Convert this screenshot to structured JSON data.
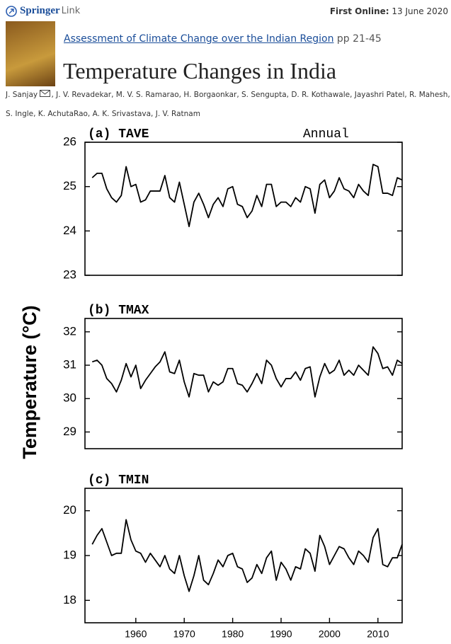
{
  "header": {
    "brand": "Springer",
    "brand_suffix": "Link",
    "first_online_label": "First Online:",
    "first_online_date": "13 June 2020",
    "book_link": "Assessment of Climate Change over the Indian Region",
    "pages": "pp 21-45",
    "title": "Temperature Changes in India",
    "authors": [
      "J. Sanjay",
      ", J. V. Revadekar, M. V. S. Ramarao, H. Borgaonkar, S. Sengupta, D. R. Kothawale, Jayashri Patel, R. Mahesh,",
      "S. Ingle, K. AchutaRao, A. K. Srivastava, J. V. Ratnam"
    ]
  },
  "figure": {
    "ylabel": "Temperature (°C)"
  },
  "chart_data": [
    {
      "type": "line",
      "title": "(a)  TAVE",
      "annotation": "Annual",
      "color": "#000000",
      "x": [
        1951,
        1952,
        1953,
        1954,
        1955,
        1956,
        1957,
        1958,
        1959,
        1960,
        1961,
        1962,
        1963,
        1964,
        1965,
        1966,
        1967,
        1968,
        1969,
        1970,
        1971,
        1972,
        1973,
        1974,
        1975,
        1976,
        1977,
        1978,
        1979,
        1980,
        1981,
        1982,
        1983,
        1984,
        1985,
        1986,
        1987,
        1988,
        1989,
        1990,
        1991,
        1992,
        1993,
        1994,
        1995,
        1996,
        1997,
        1998,
        1999,
        2000,
        2001,
        2002,
        2003,
        2004,
        2005,
        2006,
        2007,
        2008,
        2009,
        2010,
        2011,
        2012,
        2013,
        2014,
        2015
      ],
      "values": [
        25.2,
        25.3,
        25.3,
        24.95,
        24.75,
        24.65,
        24.8,
        25.45,
        25.0,
        25.05,
        24.65,
        24.7,
        24.9,
        24.9,
        24.9,
        25.25,
        24.75,
        24.65,
        25.1,
        24.6,
        24.1,
        24.65,
        24.85,
        24.6,
        24.3,
        24.6,
        24.75,
        24.55,
        24.95,
        25.0,
        24.6,
        24.55,
        24.3,
        24.45,
        24.8,
        24.55,
        25.05,
        25.05,
        24.55,
        24.65,
        24.65,
        24.55,
        24.75,
        24.65,
        25.0,
        24.95,
        24.4,
        25.05,
        25.15,
        24.75,
        24.9,
        25.2,
        24.95,
        24.9,
        24.75,
        25.05,
        24.9,
        24.8,
        25.5,
        25.45,
        24.85,
        24.85,
        24.8,
        25.2,
        25.15
      ],
      "xlim": [
        1949.5,
        2015
      ],
      "ylim": [
        23,
        26
      ],
      "yticks": [
        23,
        24,
        25,
        26
      ]
    },
    {
      "type": "line",
      "title": "(b)  TMAX",
      "color": "#000000",
      "x": [
        1951,
        1952,
        1953,
        1954,
        1955,
        1956,
        1957,
        1958,
        1959,
        1960,
        1961,
        1962,
        1963,
        1964,
        1965,
        1966,
        1967,
        1968,
        1969,
        1970,
        1971,
        1972,
        1973,
        1974,
        1975,
        1976,
        1977,
        1978,
        1979,
        1980,
        1981,
        1982,
        1983,
        1984,
        1985,
        1986,
        1987,
        1988,
        1989,
        1990,
        1991,
        1992,
        1993,
        1994,
        1995,
        1996,
        1997,
        1998,
        1999,
        2000,
        2001,
        2002,
        2003,
        2004,
        2005,
        2006,
        2007,
        2008,
        2009,
        2010,
        2011,
        2012,
        2013,
        2014,
        2015
      ],
      "values": [
        31.1,
        31.15,
        31.0,
        30.6,
        30.45,
        30.2,
        30.55,
        31.05,
        30.65,
        31.0,
        30.3,
        30.55,
        30.75,
        30.95,
        31.1,
        31.4,
        30.8,
        30.75,
        31.15,
        30.5,
        30.05,
        30.75,
        30.7,
        30.7,
        30.2,
        30.5,
        30.4,
        30.5,
        30.9,
        30.9,
        30.45,
        30.4,
        30.2,
        30.45,
        30.75,
        30.45,
        31.15,
        31.0,
        30.6,
        30.35,
        30.6,
        30.6,
        30.8,
        30.55,
        30.9,
        30.95,
        30.05,
        30.65,
        31.05,
        30.75,
        30.85,
        31.15,
        30.7,
        30.85,
        30.7,
        31.0,
        30.85,
        30.7,
        31.55,
        31.35,
        30.9,
        30.95,
        30.7,
        31.15,
        31.05
      ],
      "xlim": [
        1949.5,
        2015
      ],
      "ylim": [
        28.5,
        32.4
      ],
      "yticks": [
        29,
        30,
        31,
        32
      ]
    },
    {
      "type": "line",
      "title": "(c)  TMIN",
      "color": "#000000",
      "x": [
        1951,
        1952,
        1953,
        1954,
        1955,
        1956,
        1957,
        1958,
        1959,
        1960,
        1961,
        1962,
        1963,
        1964,
        1965,
        1966,
        1967,
        1968,
        1969,
        1970,
        1971,
        1972,
        1973,
        1974,
        1975,
        1976,
        1977,
        1978,
        1979,
        1980,
        1981,
        1982,
        1983,
        1984,
        1985,
        1986,
        1987,
        1988,
        1989,
        1990,
        1991,
        1992,
        1993,
        1994,
        1995,
        1996,
        1997,
        1998,
        1999,
        2000,
        2001,
        2002,
        2003,
        2004,
        2005,
        2006,
        2007,
        2008,
        2009,
        2010,
        2011,
        2012,
        2013,
        2014,
        2015
      ],
      "values": [
        19.25,
        19.45,
        19.6,
        19.3,
        19.0,
        19.05,
        19.05,
        19.8,
        19.35,
        19.1,
        19.05,
        18.85,
        19.05,
        18.9,
        18.75,
        19.0,
        18.7,
        18.6,
        19.0,
        18.55,
        18.2,
        18.55,
        19.0,
        18.45,
        18.35,
        18.6,
        18.9,
        18.75,
        19.0,
        19.05,
        18.75,
        18.7,
        18.4,
        18.5,
        18.8,
        18.6,
        18.95,
        19.1,
        18.45,
        18.85,
        18.7,
        18.45,
        18.75,
        18.7,
        19.15,
        19.05,
        18.65,
        19.45,
        19.2,
        18.8,
        19.0,
        19.2,
        19.15,
        18.95,
        18.8,
        19.1,
        19.0,
        18.85,
        19.4,
        19.6,
        18.8,
        18.75,
        18.95,
        18.95,
        19.25
      ],
      "xlim": [
        1949.5,
        2015
      ],
      "ylim": [
        17.5,
        20.5
      ],
      "yticks": [
        18,
        19,
        20
      ],
      "xticks": [
        1960,
        1970,
        1980,
        1990,
        2000,
        2010
      ]
    }
  ]
}
